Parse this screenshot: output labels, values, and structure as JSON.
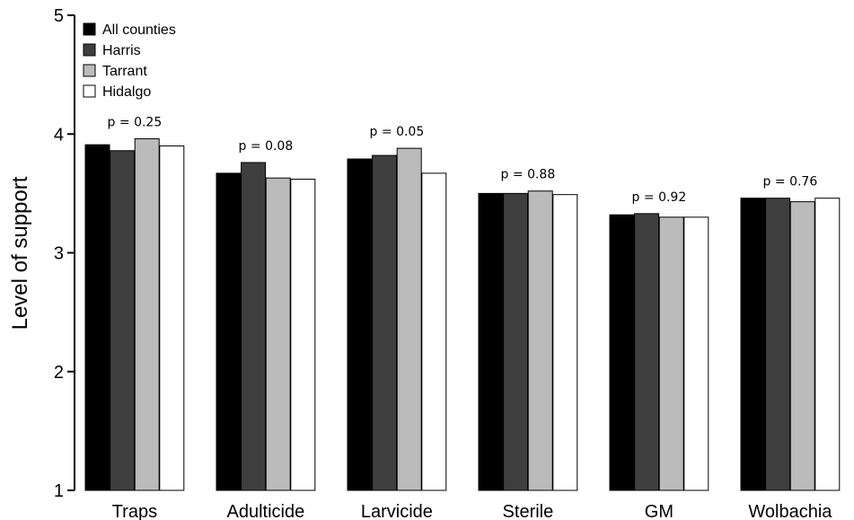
{
  "chart_data": {
    "type": "bar",
    "title": "",
    "xlabel": "",
    "ylabel": "Level of support",
    "ylim": [
      1,
      5
    ],
    "yticks": [
      "1",
      "2",
      "3",
      "4",
      "5"
    ],
    "categories": [
      "Traps",
      "Adulticide",
      "Larvicide",
      "Sterile",
      "GM",
      "Wolbachia"
    ],
    "series": [
      {
        "name": "All counties",
        "color": "#000000",
        "values": [
          3.91,
          3.67,
          3.79,
          3.5,
          3.32,
          3.46
        ]
      },
      {
        "name": "Harris",
        "color": "#3f3f3f",
        "values": [
          3.86,
          3.76,
          3.82,
          3.5,
          3.33,
          3.46
        ]
      },
      {
        "name": "Tarrant",
        "color": "#bbbbbb",
        "values": [
          3.96,
          3.63,
          3.88,
          3.52,
          3.3,
          3.43
        ]
      },
      {
        "name": "Hidalgo",
        "color": "#ffffff",
        "values": [
          3.9,
          3.62,
          3.67,
          3.49,
          3.3,
          3.46
        ]
      }
    ],
    "annotations": [
      "p = 0.25",
      "p = 0.08",
      "p = 0.05",
      "p = 0.88",
      "p = 0.92",
      "p = 0.76"
    ],
    "grid": false,
    "legend": "top-left"
  }
}
